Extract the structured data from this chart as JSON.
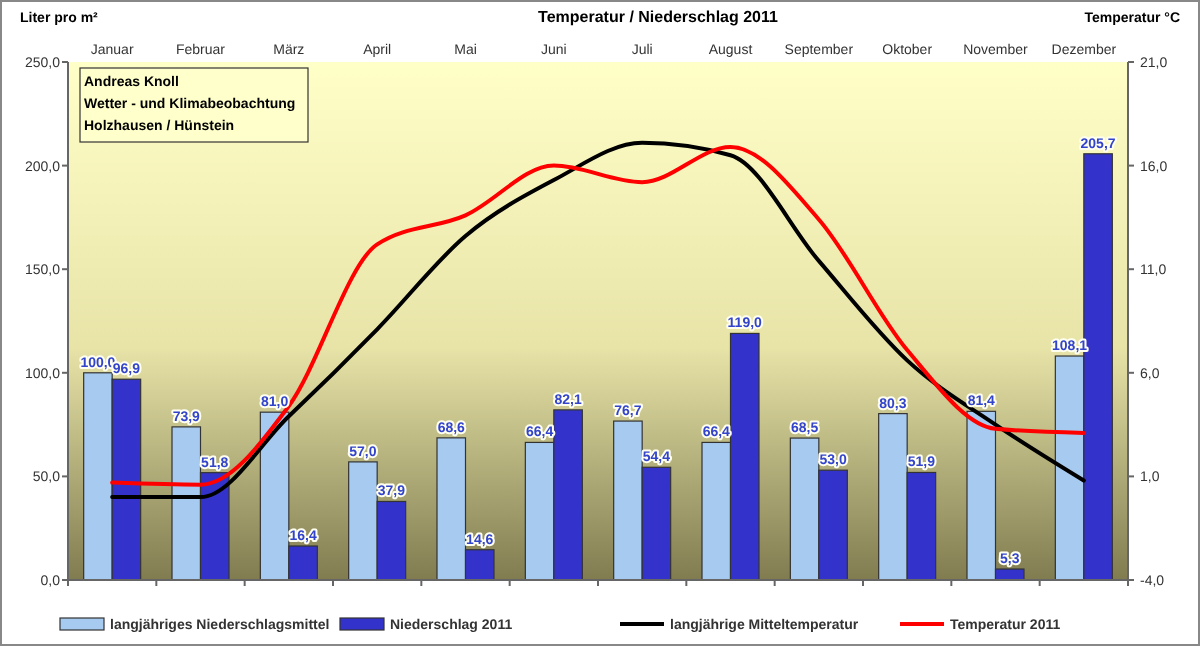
{
  "chart_data": {
    "type": "bar",
    "title": "Temperatur / Niederschlag 2011",
    "ylabel": "Liter pro m²",
    "y2label": "Temperatur °C",
    "categories": [
      "Januar",
      "Februar",
      "März",
      "April",
      "Mai",
      "Juni",
      "Juli",
      "August",
      "September",
      "Oktober",
      "November",
      "Dezember"
    ],
    "series": [
      {
        "name": "langjähriges Niederschlagsmittel",
        "color": "#a6caf0",
        "values": [
          100.0,
          73.9,
          81.0,
          57.0,
          68.6,
          66.4,
          76.7,
          66.4,
          68.5,
          80.3,
          81.4,
          108.1
        ],
        "value_labels": [
          "100,0",
          "73,9",
          "81,0",
          "57,0",
          "68,6",
          "66,4",
          "76,7",
          "66,4",
          "68,5",
          "80,3",
          "81,4",
          "108,1"
        ]
      },
      {
        "name": "Niederschlag 2011",
        "color": "#3333cc",
        "values": [
          96.9,
          51.8,
          16.4,
          37.9,
          14.6,
          82.1,
          54.4,
          119.0,
          53.0,
          51.9,
          5.3,
          205.7
        ],
        "value_labels": [
          "96,9",
          "51,8",
          "16,4",
          "37,9",
          "14,6",
          "82,1",
          "54,4",
          "119,0",
          "53,0",
          "51,9",
          "5,3",
          "205,7"
        ]
      },
      {
        "name": "langjährige Mitteltemperatur",
        "type": "line",
        "axis": "y2",
        "color": "#000000",
        "values": [
          0.0,
          0.0,
          3.9,
          8.1,
          12.6,
          15.3,
          17.1,
          16.5,
          11.4,
          6.6,
          3.5,
          0.8
        ]
      },
      {
        "name": "Temperatur 2011",
        "type": "line",
        "axis": "y2",
        "color": "#ff0000",
        "values": [
          0.7,
          0.6,
          4.4,
          12.2,
          13.6,
          16.0,
          15.2,
          16.9,
          13.4,
          7.1,
          3.3,
          3.1
        ]
      }
    ],
    "ylim": [
      0,
      250
    ],
    "yticks": [
      {
        "value": 0,
        "label": "0,0"
      },
      {
        "value": 50,
        "label": "50,0"
      },
      {
        "value": 100,
        "label": "100,0"
      },
      {
        "value": 150,
        "label": "150,0"
      },
      {
        "value": 200,
        "label": "200,0"
      },
      {
        "value": 250,
        "label": "250,0"
      }
    ],
    "y2lim": [
      -4,
      21
    ],
    "y2ticks": [
      {
        "value": -4,
        "label": "-4,0"
      },
      {
        "value": 1,
        "label": "1,0"
      },
      {
        "value": 6,
        "label": "6,0"
      },
      {
        "value": 11,
        "label": "11,0"
      },
      {
        "value": 16,
        "label": "16,0"
      },
      {
        "value": 21,
        "label": "21,0"
      }
    ],
    "legend": "bottom",
    "grid": false,
    "marker": "none",
    "line_style": "solid",
    "annotations": [
      "Andreas Knoll",
      "Wetter - und Klimabeobachtung",
      "Holzhausen / Hünstein"
    ]
  }
}
